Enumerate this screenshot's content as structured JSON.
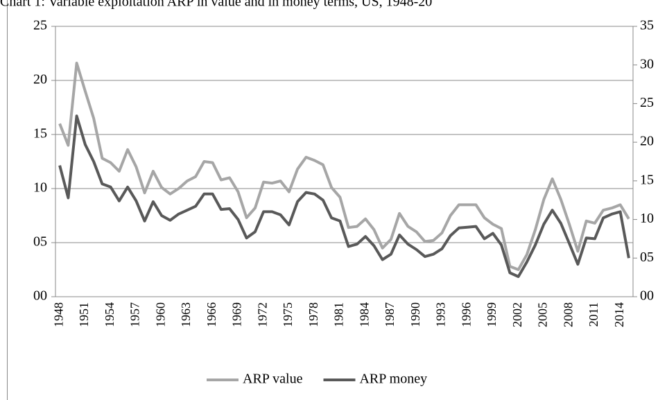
{
  "chart_data": {
    "type": "line",
    "title": "Chart 1: Variable exploitation ARP  in value and in money terms, US, 1948-20",
    "categories": [
      "1948",
      null,
      null,
      "1951",
      null,
      null,
      "1954",
      null,
      null,
      "1957",
      null,
      null,
      "1960",
      null,
      null,
      "1963",
      null,
      null,
      "1966",
      null,
      null,
      "1969",
      null,
      null,
      "1972",
      null,
      null,
      "1975",
      null,
      null,
      "1978",
      null,
      null,
      "1981",
      null,
      null,
      "1984",
      null,
      null,
      "1987",
      null,
      null,
      "1990",
      null,
      null,
      "1993",
      null,
      null,
      "1996",
      null,
      null,
      "1999",
      null,
      null,
      "2002",
      null,
      null,
      "2005",
      null,
      null,
      "2008",
      null,
      null,
      "2011",
      null,
      null,
      "2014",
      null
    ],
    "series": [
      {
        "name": "ARP value",
        "color": "#a6a6a6",
        "axis": "y",
        "values": [
          16.0,
          14.0,
          21.6,
          19.0,
          16.5,
          12.8,
          12.4,
          11.6,
          13.6,
          12.0,
          9.6,
          11.6,
          10.1,
          9.5,
          10.0,
          10.7,
          11.1,
          12.5,
          12.4,
          10.8,
          11.0,
          9.7,
          7.3,
          8.2,
          10.6,
          10.5,
          10.7,
          9.7,
          11.8,
          12.9,
          12.6,
          12.2,
          10.1,
          9.2,
          6.4,
          6.5,
          7.2,
          6.2,
          4.5,
          5.3,
          7.7,
          6.5,
          6.0,
          5.1,
          5.2,
          5.9,
          7.5,
          8.5,
          8.5,
          8.5,
          7.3,
          6.7,
          6.3,
          2.8,
          2.5,
          3.9,
          6.2,
          9.0,
          10.9,
          9.0,
          6.7,
          4.2,
          7.0,
          6.8,
          8.0,
          8.2,
          8.5,
          7.2
        ]
      },
      {
        "name": "ARP money",
        "color": "#595959",
        "axis": "y2",
        "values": [
          17.0,
          12.8,
          23.4,
          19.7,
          17.5,
          14.6,
          14.2,
          12.4,
          14.2,
          12.4,
          9.8,
          12.3,
          10.5,
          9.9,
          10.7,
          11.2,
          11.7,
          13.3,
          13.3,
          11.3,
          11.4,
          10.0,
          7.6,
          8.4,
          11.0,
          11.0,
          10.6,
          9.3,
          12.3,
          13.5,
          13.3,
          12.5,
          10.2,
          9.8,
          6.5,
          6.8,
          7.8,
          6.6,
          4.8,
          5.5,
          8.0,
          6.8,
          6.1,
          5.2,
          5.5,
          6.2,
          7.9,
          8.9,
          9.0,
          9.1,
          7.5,
          8.2,
          6.7,
          3.1,
          2.6,
          4.5,
          6.7,
          9.4,
          11.2,
          9.5,
          6.9,
          4.2,
          7.6,
          7.5,
          10.2,
          10.7,
          11.0,
          5.0
        ]
      }
    ],
    "ylim": [
      0,
      25
    ],
    "yticks": [
      {
        "value": 0,
        "label": "00"
      },
      {
        "value": 5,
        "label": "05"
      },
      10,
      15,
      20,
      25
    ],
    "y2lim": [
      0,
      35
    ],
    "y2ticks": [
      {
        "value": 0,
        "label": "00"
      },
      {
        "value": 5,
        "label": "05"
      },
      10,
      15,
      20,
      25,
      30,
      35
    ],
    "grid": true,
    "legend": "bottom"
  }
}
